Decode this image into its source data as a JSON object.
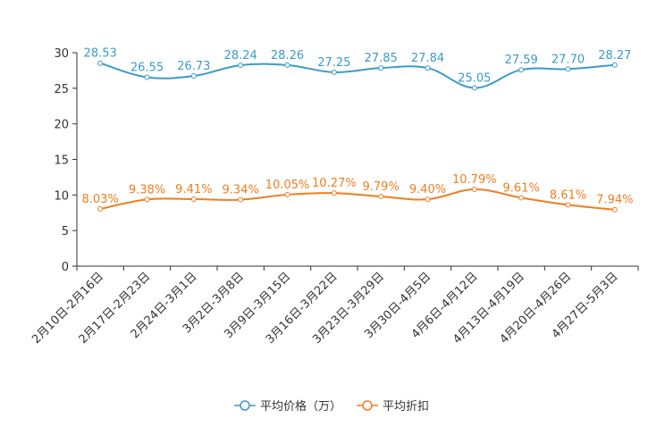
{
  "chart_data": {
    "type": "line",
    "title": "",
    "xlabel": "",
    "ylabel": "",
    "ylim": [
      0,
      30
    ],
    "yticks": [
      0,
      5,
      10,
      15,
      20,
      25,
      30
    ],
    "categories": [
      "2月10日-2月16日",
      "2月17日-2月23日",
      "2月24日-3月1日",
      "3月2日-3月8日",
      "3月9日-3月15日",
      "3月16日-3月22日",
      "3月23日-3月29日",
      "3月30日-4月5日",
      "4月6日-4月12日",
      "4月13日-4月19日",
      "4月20日-4月26日",
      "4月27日-5月3日"
    ],
    "series": [
      {
        "name": "平均价格（万）",
        "color": "#3a9bc9",
        "values": [
          28.53,
          26.55,
          26.73,
          28.24,
          28.26,
          27.25,
          27.85,
          27.84,
          25.05,
          27.59,
          27.7,
          28.27
        ],
        "labels": [
          "28.53",
          "26.55",
          "26.73",
          "28.24",
          "28.26",
          "27.25",
          "27.85",
          "27.84",
          "25.05",
          "27.59",
          "27.70",
          "28.27"
        ]
      },
      {
        "name": "平均折扣",
        "color": "#f07d1e",
        "values": [
          8.03,
          9.38,
          9.41,
          9.34,
          10.05,
          10.27,
          9.79,
          9.4,
          10.79,
          9.61,
          8.61,
          7.94
        ],
        "labels": [
          "8.03%",
          "9.38%",
          "9.41%",
          "9.34%",
          "10.05%",
          "10.27%",
          "9.79%",
          "9.40%",
          "10.79%",
          "9.61%",
          "8.61%",
          "7.94%"
        ]
      }
    ],
    "legend_position": "bottom-center",
    "grid": false
  }
}
